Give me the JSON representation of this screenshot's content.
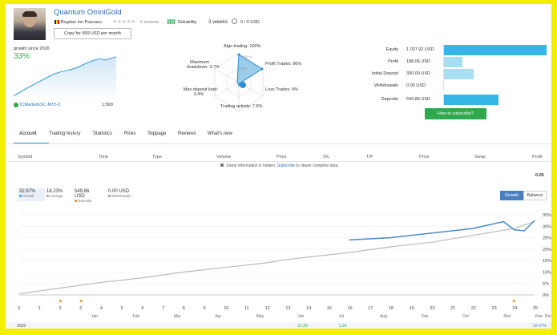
{
  "header": {
    "title": "Quantum OmniGold",
    "author": "Bogdan Ion Puscasu",
    "reviews": "0 reviews",
    "reliability": "Reliability",
    "weeks": "3 weeks",
    "balance": "0 / 0 USD",
    "copy_button": "Copy for 999 USD per month"
  },
  "growth": {
    "since_label": "growth since 2026",
    "value": "33%",
    "broker": "ICMarketsSC-MT5-2",
    "leverage": "1:500"
  },
  "radar": {
    "algo": "Algo trading: 100%",
    "profit_trades": "Profit Trades: 96%",
    "loss_trades": "Loss Trades: 4%",
    "trading_activity": "Trading activity: 7.9%",
    "max_deposit_load_a": "Max deposit load:",
    "max_deposit_load_b": "3.4%",
    "max_drawdown_a": "Maximum",
    "max_drawdown_b": "drawdown: 3.7%",
    "scale_1": "100+%",
    "scale_2": "50%"
  },
  "stats": [
    {
      "label": "Equity",
      "value": "1 037.92 USD",
      "fraction": 1.0
    },
    {
      "label": "Profit",
      "value": "188.06 USD",
      "fraction": 0.18
    },
    {
      "label": "Initial Deposit",
      "value": "300.00 USD",
      "fraction": 0.29
    },
    {
      "label": "Withdrawals",
      "value": "0.00 USD",
      "fraction": 0.0
    },
    {
      "label": "Deposits",
      "value": "549.86 USD",
      "fraction": 0.53
    }
  ],
  "subscribe_button": "How to subscribe?",
  "tabs": [
    "Account",
    "Trading history",
    "Statistics",
    "Risks",
    "Slippage",
    "Reviews",
    "What's new"
  ],
  "table": {
    "headers": [
      "Symbol",
      "Time",
      "Type",
      "Volume",
      "Price",
      "S/L",
      "T/P",
      "Price",
      "Swap",
      "Profit"
    ],
    "notice_pre": "Some information is hidden.",
    "notice_link": "Subscribe",
    "notice_post": "to obtain complete data.",
    "total": "0.00"
  },
  "summary": [
    {
      "value": "32.97%",
      "label": "Growth"
    },
    {
      "value": "16.23%",
      "label": "Average"
    },
    {
      "value": "549.86 USD",
      "label": "Deposits"
    },
    {
      "value": "0.00 USD",
      "label": "Withdrawals"
    }
  ],
  "toggle": {
    "growth": "Growth",
    "balance": "Balance"
  },
  "colors": {
    "accent": "#3a9ad9",
    "bar_strong": "#35b6e6",
    "bar_light": "#a8def2",
    "subscribe": "#2fa84f",
    "growth_green": "#2fa84f",
    "active_toggle": "#4a7fc1"
  },
  "chart_data": {
    "type": "line",
    "x_ticks": [
      "0",
      "1",
      "2",
      "3",
      "4",
      "5",
      "6",
      "7",
      "8",
      "9",
      "10",
      "11",
      "12",
      "13",
      "14",
      "15",
      "16",
      "17",
      "18",
      "19",
      "20",
      "21",
      "22",
      "23",
      "24",
      "25"
    ],
    "month_labels": [
      "Jan",
      "Feb",
      "Mar",
      "Apr",
      "May",
      "Jun",
      "Jul",
      "Aug",
      "Sep",
      "Oct",
      "Nov",
      "Dec",
      "Year"
    ],
    "y_ticks": [
      "35%",
      "30%",
      "25%",
      "20%",
      "15%",
      "10%",
      "5%",
      "0%"
    ],
    "ylim": [
      0,
      35
    ],
    "bottom_row": {
      "year": "2026",
      "jun": "21.28",
      "jul": "1.24",
      "year_total": "32.97%"
    },
    "series": [
      {
        "values": [
          [
            0,
            0.5
          ],
          [
            2,
            3
          ],
          [
            4,
            5.5
          ],
          [
            6,
            7.5
          ],
          [
            8,
            10
          ],
          [
            10,
            12
          ],
          [
            12,
            14
          ],
          [
            13,
            15.5
          ],
          [
            14,
            16.5
          ],
          [
            16,
            18.5
          ],
          [
            18,
            21
          ],
          [
            20,
            23
          ],
          [
            22,
            26
          ],
          [
            24,
            29
          ],
          [
            25,
            32
          ]
        ]
      },
      {
        "values": [
          [
            16,
            24
          ],
          [
            18,
            25
          ],
          [
            20,
            27
          ],
          [
            21,
            28
          ],
          [
            22,
            29
          ],
          [
            23,
            31
          ],
          [
            23.5,
            32
          ],
          [
            24,
            28.5
          ],
          [
            24.5,
            28
          ],
          [
            25,
            32.5
          ]
        ]
      }
    ]
  }
}
